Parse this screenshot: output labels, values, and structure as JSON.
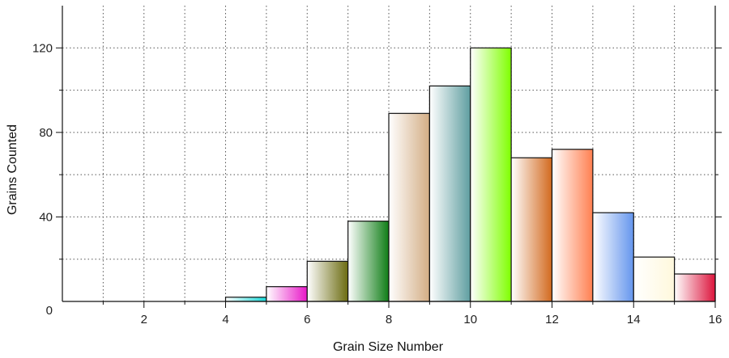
{
  "chart_data": {
    "type": "bar",
    "xlabel": "Grain Size Number",
    "ylabel": "Grains Counted",
    "xlim": [
      0,
      16
    ],
    "ylim": [
      0,
      140
    ],
    "x_ticks": [
      2,
      4,
      6,
      8,
      10,
      12,
      14,
      16
    ],
    "y_ticks": [
      40,
      80,
      120
    ],
    "origin_label": "0",
    "grid": true,
    "bins": [
      {
        "start": 4,
        "end": 5,
        "value": 2,
        "color": "#17d8d8"
      },
      {
        "start": 5,
        "end": 6,
        "value": 7,
        "color": "#e817c8"
      },
      {
        "start": 6,
        "end": 7,
        "value": 19,
        "color": "#6b6b10"
      },
      {
        "start": 7,
        "end": 8,
        "value": 38,
        "color": "#0f7d16"
      },
      {
        "start": 8,
        "end": 9,
        "value": 89,
        "color": "#d3ad84"
      },
      {
        "start": 9,
        "end": 10,
        "value": 102,
        "color": "#5f9ea0"
      },
      {
        "start": 10,
        "end": 11,
        "value": 120,
        "color": "#7fff00"
      },
      {
        "start": 11,
        "end": 12,
        "value": 68,
        "color": "#d2691e"
      },
      {
        "start": 12,
        "end": 13,
        "value": 72,
        "color": "#ff7f50"
      },
      {
        "start": 13,
        "end": 14,
        "value": 42,
        "color": "#6495ed"
      },
      {
        "start": 14,
        "end": 15,
        "value": 21,
        "color": "#fff8dc"
      },
      {
        "start": 15,
        "end": 16,
        "value": 13,
        "color": "#dc143c"
      }
    ]
  }
}
